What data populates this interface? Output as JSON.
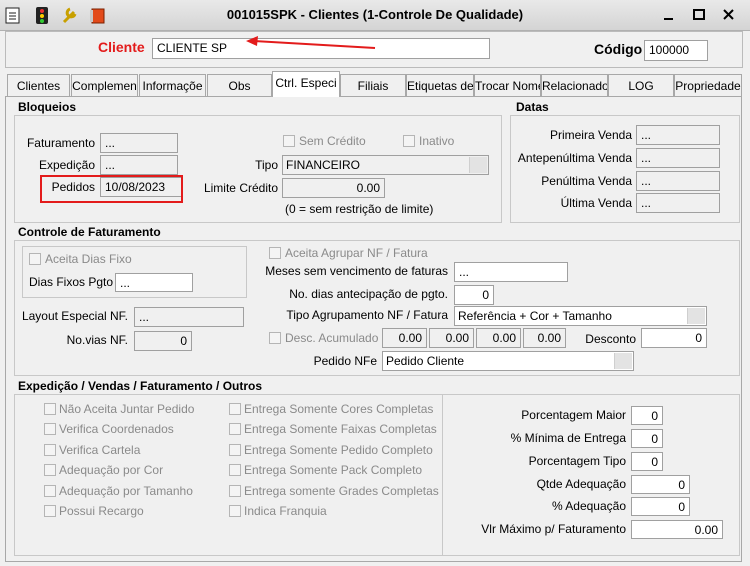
{
  "window": {
    "title": "001015SPK - Clientes (1-Controle De Qualidade)"
  },
  "header": {
    "cliente_label": "Cliente",
    "cliente_value": "CLIENTE SP",
    "codigo_label": "Código",
    "codigo_value": "100000"
  },
  "tabs": [
    "Clientes",
    "Complemen",
    "Informaçõe",
    "Obs",
    "Ctrl. Especi",
    "Filiais",
    "Etiquetas de",
    "Trocar Nome",
    "Relacionado",
    "LOG",
    "Propriedade"
  ],
  "bloqueios": {
    "title": "Bloqueios",
    "faturamento_label": "Faturamento",
    "faturamento_value": "...",
    "expedicao_label": "Expedição",
    "expedicao_value": "...",
    "pedidos_label": "Pedidos",
    "pedidos_value": "10/08/2023",
    "sem_credito": "Sem Crédito",
    "inativo": "Inativo",
    "tipo_label": "Tipo",
    "tipo_value": "FINANCEIRO",
    "limite_label": "Limite Crédito",
    "limite_value": "0.00",
    "limite_note": "(0 = sem restrição de limite)"
  },
  "datas": {
    "title": "Datas",
    "fields": [
      {
        "label": "Primeira Venda",
        "value": "..."
      },
      {
        "label": "Antepenúltima Venda",
        "value": "..."
      },
      {
        "label": "Penúltima Venda",
        "value": "..."
      },
      {
        "label": "Última Venda",
        "value": "..."
      }
    ]
  },
  "controle": {
    "title": "Controle de Faturamento",
    "aceita_dias_fixo": "Aceita Dias Fixo",
    "dias_fixos_label": "Dias Fixos Pgto",
    "dias_fixos_value": "...",
    "layout_label": "Layout Especial NF.",
    "layout_value": "...",
    "vias_label": "No.vias NF.",
    "vias_value": "0",
    "aceita_agrupar": "Aceita Agrupar NF / Fatura",
    "meses_label": "Meses sem vencimento de faturas",
    "meses_value": "...",
    "antecipacao_label": "No. dias antecipação de pgto.",
    "antecipacao_value": "0",
    "agrupamento_label": "Tipo Agrupamento NF / Fatura",
    "agrupamento_value": "Referência + Cor + Tamanho",
    "desc_acumulado": "Desc. Acumulado",
    "desc_values": [
      "0.00",
      "0.00",
      "0.00",
      "0.00"
    ],
    "desconto_label": "Desconto",
    "desconto_value": "0",
    "pedido_nfe_label": "Pedido NFe",
    "pedido_nfe_value": "Pedido Cliente"
  },
  "outros": {
    "title": "Expedição / Vendas / Faturamento / Outros",
    "options_left": [
      "Não Aceita Juntar Pedido",
      "Verifica Coordenados",
      "Verifica Cartela",
      "Adequação por Cor",
      "Adequação por Tamanho",
      "Possui Recargo"
    ],
    "options_right": [
      "Entrega Somente Cores Completas",
      "Entrega Somente Faixas Completas",
      "Entrega Somente Pedido Completo",
      "Entrega Somente Pack Completo",
      "Entrega somente Grades Completas",
      "Indica Franquia"
    ],
    "fields": [
      {
        "label": "Porcentagem Maior",
        "value": "0"
      },
      {
        "label": "% Mínima de Entrega",
        "value": "0"
      },
      {
        "label": "Porcentagem Tipo",
        "value": "0"
      },
      {
        "label": "Qtde Adequação",
        "value": "0"
      },
      {
        "label": "% Adequação",
        "value": "0"
      },
      {
        "label": "Vlr Máximo p/ Faturamento",
        "value": "0.00"
      }
    ]
  }
}
